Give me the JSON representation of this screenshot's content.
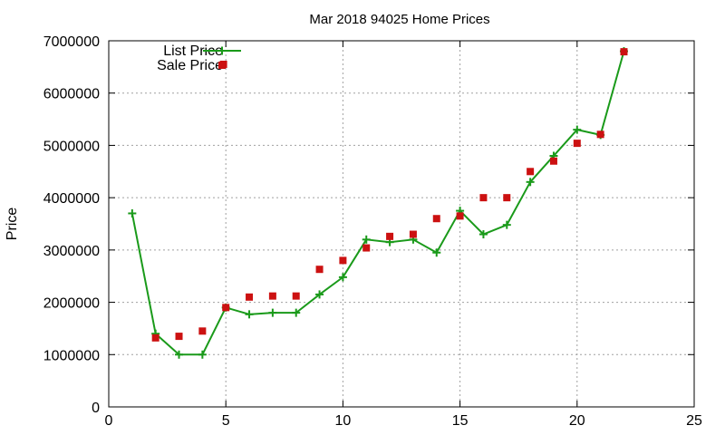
{
  "chart_data": {
    "type": "line",
    "title": "Mar 2018 94025 Home Prices",
    "xlabel": "",
    "ylabel": "Price",
    "xlim": [
      0,
      25
    ],
    "ylim": [
      0,
      7000000
    ],
    "x_ticks": [
      "0",
      "5",
      "10",
      "15",
      "20",
      "25"
    ],
    "y_ticks": [
      "0",
      "1000000",
      "2000000",
      "3000000",
      "4000000",
      "5000000",
      "6000000",
      "7000000"
    ],
    "grid": true,
    "legend_position": "top-left",
    "series": [
      {
        "name": "List Price",
        "style": "line+plus",
        "color": "#1a9a1a",
        "points": [
          [
            1,
            3700000
          ],
          [
            2,
            1400000
          ],
          [
            3,
            1000000
          ],
          [
            4,
            1000000
          ],
          [
            5,
            1900000
          ],
          [
            6,
            1770000
          ],
          [
            7,
            1800000
          ],
          [
            8,
            1800000
          ],
          [
            9,
            2150000
          ],
          [
            10,
            2480000
          ],
          [
            11,
            3200000
          ],
          [
            12,
            3150000
          ],
          [
            13,
            3200000
          ],
          [
            14,
            2950000
          ],
          [
            15,
            3750000
          ],
          [
            16,
            3300000
          ],
          [
            17,
            3480000
          ],
          [
            18,
            4300000
          ],
          [
            19,
            4800000
          ],
          [
            20,
            5300000
          ],
          [
            21,
            5200000
          ],
          [
            22,
            6800000
          ]
        ]
      },
      {
        "name": "Sale Price",
        "style": "square",
        "color": "#cc1111",
        "points": [
          [
            2,
            1320000
          ],
          [
            3,
            1350000
          ],
          [
            4,
            1450000
          ],
          [
            4.9,
            6550000
          ],
          [
            5,
            1900000
          ],
          [
            6,
            2100000
          ],
          [
            7,
            2120000
          ],
          [
            8,
            2120000
          ],
          [
            9,
            2630000
          ],
          [
            10,
            2800000
          ],
          [
            11,
            3040000
          ],
          [
            12,
            3260000
          ],
          [
            13,
            3300000
          ],
          [
            14,
            3600000
          ],
          [
            15,
            3650000
          ],
          [
            16,
            4000000
          ],
          [
            17,
            4000000
          ],
          [
            18,
            4500000
          ],
          [
            19,
            4700000
          ],
          [
            20,
            5040000
          ],
          [
            21,
            5210000
          ],
          [
            22,
            6790000
          ]
        ]
      }
    ]
  }
}
